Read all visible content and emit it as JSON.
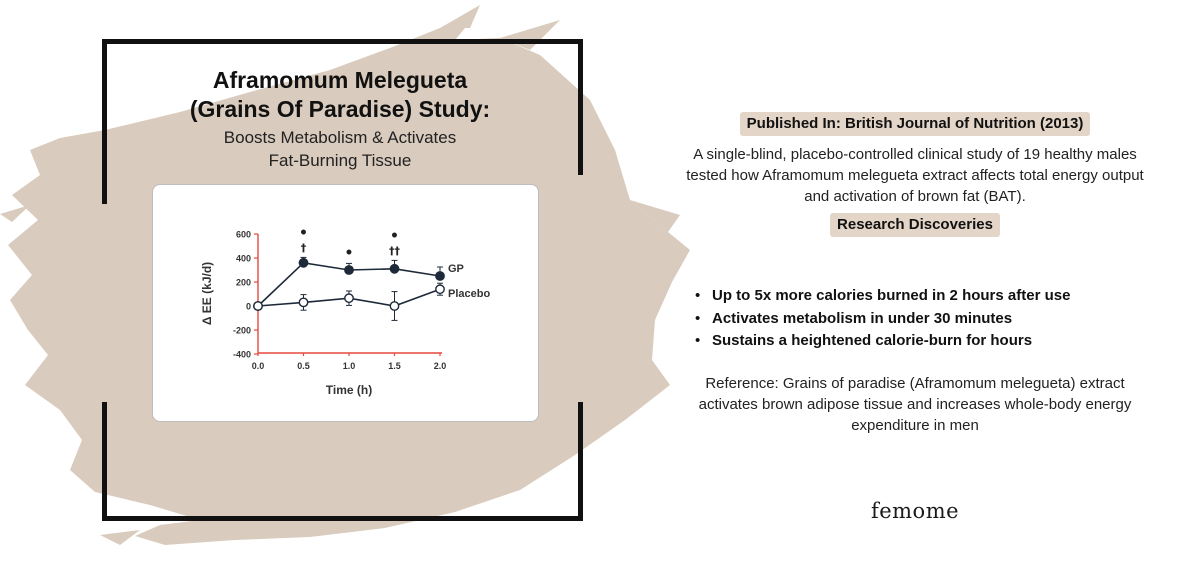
{
  "title": {
    "line1": "Aframomum Melegueta",
    "line2": "(Grains Of Paradise) Study:",
    "sub1": "Boosts Metabolism & Activates",
    "sub2": "Fat-Burning Tissue"
  },
  "chart_data": {
    "type": "line",
    "xlabel": "Time (h)",
    "ylabel": "Δ EE (kJ/d)",
    "x": [
      0.0,
      0.5,
      1.0,
      1.5,
      2.0
    ],
    "x_tick_labels": [
      "0.0",
      "0.5",
      "1.0",
      "1.5",
      "2.0"
    ],
    "y_ticks": [
      600,
      400,
      200,
      0,
      -200,
      -400
    ],
    "y_tick_labels": [
      "600",
      "400",
      "200",
      "0",
      "-200",
      "-400"
    ],
    "xlim": [
      0,
      2.0
    ],
    "ylim": [
      -400,
      600
    ],
    "series": [
      {
        "name": "GP",
        "values": [
          0,
          360,
          300,
          310,
          250
        ],
        "err": [
          0,
          45,
          55,
          70,
          75
        ],
        "marker": "filled"
      },
      {
        "name": "Placebo",
        "values": [
          0,
          30,
          65,
          0,
          140
        ],
        "err": [
          0,
          65,
          60,
          120,
          50
        ],
        "marker": "open"
      }
    ],
    "annotations": [
      {
        "x": 0.5,
        "marks": [
          "•",
          "†"
        ]
      },
      {
        "x": 1.0,
        "marks": [
          "•"
        ]
      },
      {
        "x": 1.5,
        "marks": [
          "•",
          "††"
        ]
      }
    ],
    "colors": {
      "axis": "#e5483d",
      "line": "#1e2a3a"
    },
    "grid": false
  },
  "published": {
    "label": "Published In: British Journal of Nutrition (2013)"
  },
  "summary": "A single-blind, placebo-controlled clinical study of 19 healthy males tested how Aframomum melegueta extract affects total energy output and activation of brown fat (BAT).",
  "discoveries": {
    "label": "Research Discoveries",
    "items": [
      "Up to 5x more calories burned in 2 hours after use",
      "Activates metabolism in under 30 minutes",
      "Sustains a heightened calorie-burn for hours"
    ],
    "bullet": "•"
  },
  "reference": "Reference: Grains of paradise (Aframomum melegueta) extract activates brown adipose tissue and increases whole-body energy expenditure in men",
  "brand": "femome",
  "colors": {
    "brush": "#d9cbbd",
    "pill": "#e3d5c7",
    "frame": "#111111"
  }
}
